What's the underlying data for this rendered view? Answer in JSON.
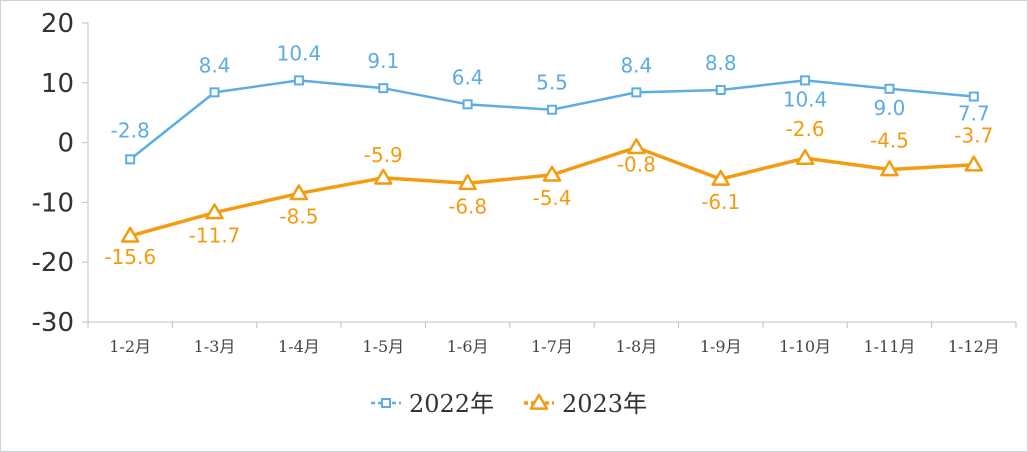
{
  "chart_data": {
    "type": "line",
    "categories": [
      "1-2月",
      "1-3月",
      "1-4月",
      "1-5月",
      "1-6月",
      "1-7月",
      "1-8月",
      "1-9月",
      "1-10月",
      "1-11月",
      "1-12月"
    ],
    "ylim": [
      -30,
      20
    ],
    "yticks": [
      20,
      10,
      0,
      -10,
      -20,
      -30
    ],
    "grid": false,
    "legend_position": "bottom",
    "series": [
      {
        "name": "2022年",
        "color": "#5dade2",
        "marker": "square",
        "values": [
          -2.8,
          8.4,
          10.4,
          9.1,
          6.4,
          5.5,
          8.4,
          8.8,
          10.4,
          9.0,
          7.7
        ],
        "labels": [
          "-2.8",
          "8.4",
          "10.4",
          "9.1",
          "6.4",
          "5.5",
          "8.4",
          "8.8",
          "10.4",
          "9.0",
          "7.7"
        ]
      },
      {
        "name": "2023年",
        "color": "#f39c12",
        "marker": "triangle",
        "values": [
          -15.6,
          -11.7,
          -8.5,
          -5.9,
          -6.8,
          -5.4,
          -0.8,
          -6.1,
          -2.6,
          -4.5,
          -3.7
        ],
        "labels": [
          "-15.6",
          "-11.7",
          "-8.5",
          "-5.9",
          "-6.8",
          "-5.4",
          "-0.8",
          "-6.1",
          "-2.6",
          "-4.5",
          "-3.7"
        ]
      }
    ]
  }
}
